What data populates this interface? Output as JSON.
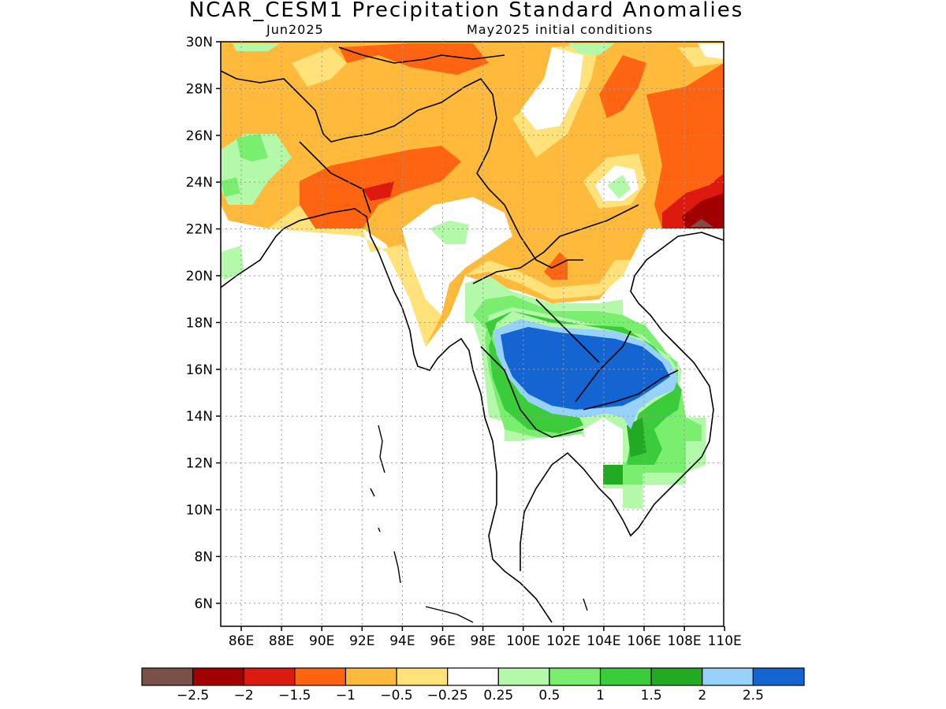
{
  "title": "NCAR_CESM1 Precipitation Standard Anomalies",
  "subtitle_left": "Jun2025",
  "subtitle_right": "May2025 initial conditions",
  "y_ticks": [
    "30N",
    "28N",
    "26N",
    "24N",
    "22N",
    "20N",
    "18N",
    "16N",
    "14N",
    "12N",
    "10N",
    "8N",
    "6N"
  ],
  "x_ticks": [
    "86E",
    "88E",
    "90E",
    "92E",
    "94E",
    "96E",
    "98E",
    "100E",
    "102E",
    "104E",
    "106E",
    "108E",
    "110E"
  ],
  "colorbar": {
    "colors": [
      "#7a5148",
      "#a00000",
      "#dd1a10",
      "#ff6410",
      "#ffba3c",
      "#ffe27a",
      "#ffffff",
      "#b4f8aa",
      "#7aee6e",
      "#3acc3a",
      "#22aa22",
      "#96d2fa",
      "#1464d2"
    ],
    "labels": [
      "−2.5",
      "−2",
      "−1.5",
      "−1",
      "−0.5",
      "−0.25",
      "0.25",
      "0.5",
      "1",
      "1.5",
      "2",
      "2.5"
    ]
  }
}
